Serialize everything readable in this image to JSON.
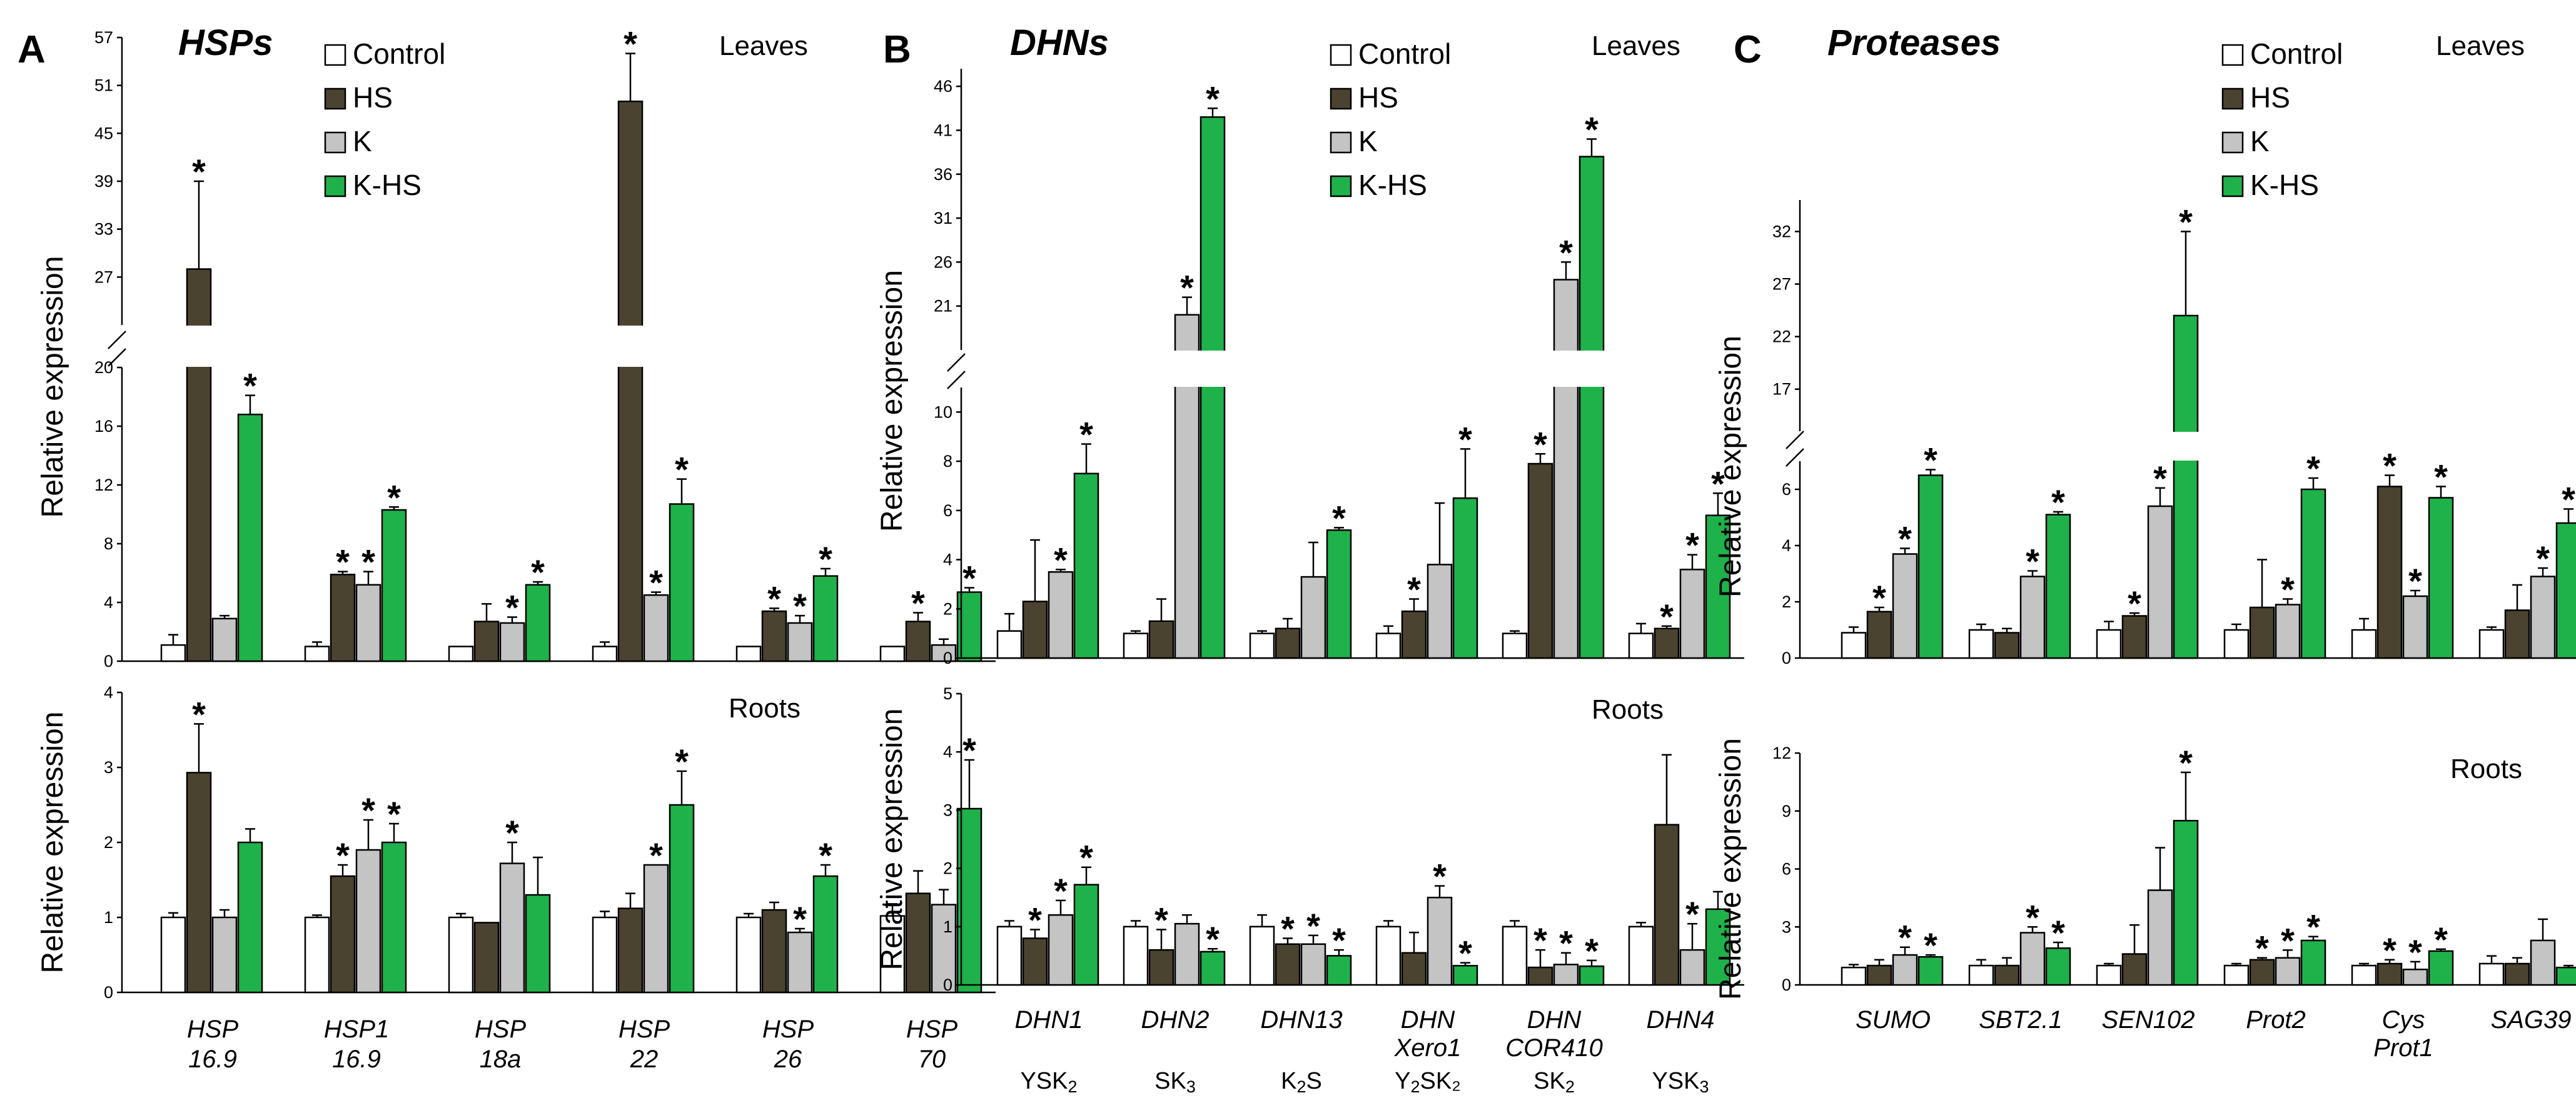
{
  "colors": {
    "Control": "#ffffff",
    "HS": "#4a4330",
    "K": "#c4c4c4",
    "K-HS": "#1fb24a"
  },
  "chart_data": [
    {
      "type": "bar",
      "panel": "A",
      "title": "HSPs",
      "legend": [
        "Control",
        "HS",
        "K",
        "K-HS"
      ],
      "categories": [
        [
          "HSP",
          "16.9"
        ],
        [
          "HSP1",
          "16.9"
        ],
        [
          "HSP",
          "18a"
        ],
        [
          "HSP",
          "22"
        ],
        [
          "HSP",
          "26"
        ],
        [
          "HSP",
          "70"
        ]
      ],
      "leaves": {
        "label": "Leaves",
        "ylabel": "Relative expression",
        "lower_ticks": [
          "0",
          "4",
          "8",
          "12",
          "16",
          "20"
        ],
        "upper_ticks": [
          "27",
          "33",
          "39",
          "45",
          "51",
          "57"
        ],
        "series": [
          {
            "name": "Control",
            "values": [
              1.1,
              1.0,
              1.0,
              1.0,
              1.0,
              1.0
            ],
            "err": [
              0.7,
              0.3,
              0,
              0.3,
              0,
              0
            ],
            "sig": [
              false,
              false,
              false,
              false,
              false,
              false
            ]
          },
          {
            "name": "HS",
            "values": [
              28,
              5.9,
              2.7,
              49,
              3.4,
              2.7
            ],
            "err": [
              11,
              0.2,
              1.2,
              6,
              0.2,
              0.6
            ],
            "sig": [
              true,
              true,
              false,
              true,
              true,
              true
            ]
          },
          {
            "name": "K",
            "values": [
              2.9,
              5.2,
              2.6,
              4.5,
              2.6,
              1.1
            ],
            "err": [
              0.2,
              0.9,
              0.4,
              0.2,
              0.5,
              0.4
            ],
            "sig": [
              false,
              true,
              true,
              true,
              true,
              false
            ]
          },
          {
            "name": "K-HS",
            "values": [
              16.8,
              10.3,
              5.2,
              10.7,
              5.8,
              4.7
            ],
            "err": [
              1.3,
              0.2,
              0.2,
              1.7,
              0.5,
              0.3
            ],
            "sig": [
              true,
              true,
              true,
              true,
              true,
              true
            ]
          }
        ]
      },
      "roots": {
        "label": "Roots",
        "ylabel": "Relative expression",
        "ticks": [
          "0",
          "1",
          "2",
          "3",
          "4"
        ],
        "series": [
          {
            "name": "Control",
            "values": [
              1.0,
              1.0,
              1.0,
              1.0,
              1.0,
              1.02
            ],
            "err": [
              0.06,
              0.03,
              0.05,
              0.08,
              0.05,
              0.16
            ],
            "sig": [
              false,
              false,
              false,
              false,
              false,
              false
            ]
          },
          {
            "name": "HS",
            "values": [
              2.93,
              1.55,
              0.93,
              1.12,
              1.1,
              1.32
            ],
            "err": [
              0.65,
              0.15,
              0,
              0.2,
              0.1,
              0.3
            ],
            "sig": [
              true,
              true,
              false,
              false,
              false,
              false
            ]
          },
          {
            "name": "K",
            "values": [
              1.0,
              1.9,
              1.72,
              1.7,
              0.8,
              1.17
            ],
            "err": [
              0.1,
              0.4,
              0.28,
              0,
              0.05,
              0.2
            ],
            "sig": [
              false,
              true,
              true,
              true,
              true,
              false
            ]
          },
          {
            "name": "K-HS",
            "values": [
              2.0,
              2.0,
              1.3,
              2.5,
              1.55,
              2.45
            ],
            "err": [
              0.18,
              0.25,
              0.5,
              0.45,
              0.15,
              0.65
            ],
            "sig": [
              false,
              true,
              false,
              true,
              true,
              true
            ]
          }
        ]
      }
    },
    {
      "type": "bar",
      "panel": "B",
      "title": "DHNs",
      "legend": [
        "Control",
        "HS",
        "K",
        "K-HS"
      ],
      "categories": [
        [
          "DHN1"
        ],
        [
          "DHN2"
        ],
        [
          "DHN13"
        ],
        [
          "DHN",
          "Xero1"
        ],
        [
          "DHN",
          "COR410"
        ],
        [
          "DHN4"
        ]
      ],
      "subtypes": [
        [
          "YSK",
          "2",
          ""
        ],
        [
          "SK",
          "3",
          ""
        ],
        [
          "K",
          "2",
          "S"
        ],
        [
          "Y",
          "2",
          "SK₂"
        ],
        [
          "SK",
          "2",
          ""
        ],
        [
          "YSK",
          "3",
          ""
        ]
      ],
      "leaves": {
        "label": "Leaves",
        "ylabel": "Relative expression",
        "lower_ticks": [
          "0",
          "2",
          "4",
          "6",
          "8",
          "10"
        ],
        "upper_ticks": [
          "21",
          "26",
          "31",
          "36",
          "41",
          "46"
        ],
        "series": [
          {
            "name": "Control",
            "values": [
              1.1,
              1.0,
              1.0,
              1.0,
              1.0,
              1.0
            ],
            "err": [
              0.7,
              0.1,
              0.1,
              0.3,
              0.1,
              0.4
            ],
            "sig": [
              false,
              false,
              false,
              false,
              false,
              false
            ]
          },
          {
            "name": "HS",
            "values": [
              2.3,
              1.5,
              1.2,
              1.9,
              7.9,
              1.2
            ],
            "err": [
              2.5,
              0.9,
              0.4,
              0.5,
              0.4,
              0.1
            ],
            "sig": [
              false,
              false,
              false,
              true,
              true,
              true
            ]
          },
          {
            "name": "K",
            "values": [
              3.5,
              20,
              3.3,
              3.8,
              24,
              3.6
            ],
            "err": [
              0.1,
              2,
              1.4,
              2.5,
              2,
              0.6
            ],
            "sig": [
              true,
              true,
              false,
              false,
              true,
              true
            ]
          },
          {
            "name": "K-HS",
            "values": [
              7.5,
              42.5,
              5.2,
              6.5,
              38,
              5.8
            ],
            "err": [
              1.2,
              1,
              0.1,
              2,
              2,
              0.9
            ],
            "sig": [
              true,
              true,
              true,
              true,
              true,
              true
            ]
          }
        ]
      },
      "roots": {
        "label": "Roots",
        "ylabel": "Relative expression",
        "ticks": [
          "0",
          "1",
          "2",
          "3",
          "4",
          "5"
        ],
        "series": [
          {
            "name": "Control",
            "values": [
              1.0,
              1.0,
              1.0,
              1.0,
              1.0,
              1.0
            ],
            "err": [
              0.1,
              0.1,
              0.2,
              0.1,
              0.1,
              0.07
            ],
            "sig": [
              false,
              false,
              false,
              false,
              false,
              false
            ]
          },
          {
            "name": "HS",
            "values": [
              0.8,
              0.6,
              0.7,
              0.55,
              0.3,
              2.75
            ],
            "err": [
              0.15,
              0.35,
              0.1,
              0.35,
              0.3,
              1.2
            ],
            "sig": [
              true,
              true,
              true,
              false,
              true,
              false
            ]
          },
          {
            "name": "K",
            "values": [
              1.2,
              1.05,
              0.7,
              1.5,
              0.35,
              0.6
            ],
            "err": [
              0.25,
              0.15,
              0.15,
              0.2,
              0.2,
              0.45
            ],
            "sig": [
              true,
              false,
              true,
              true,
              true,
              true
            ]
          },
          {
            "name": "K-HS",
            "values": [
              1.72,
              0.57,
              0.5,
              0.33,
              0.32,
              1.3
            ],
            "err": [
              0.3,
              0.05,
              0.1,
              0.05,
              0.1,
              0.3
            ],
            "sig": [
              true,
              true,
              true,
              true,
              true,
              false
            ]
          }
        ]
      }
    },
    {
      "type": "bar",
      "panel": "C",
      "title": "Proteases",
      "legend": [
        "Control",
        "HS",
        "K",
        "K-HS"
      ],
      "categories": [
        [
          "SUMO"
        ],
        [
          "SBT2.1"
        ],
        [
          "SEN102"
        ],
        [
          "Prot2"
        ],
        [
          "Cys",
          "Prot1"
        ],
        [
          "SAG39"
        ]
      ],
      "leaves": {
        "label": "Leaves",
        "ylabel": "Relative expression",
        "lower_ticks": [
          "0",
          "2",
          "4",
          "6"
        ],
        "upper_ticks": [
          "17",
          "22",
          "27",
          "32"
        ],
        "series": [
          {
            "name": "Control",
            "values": [
              0.9,
              1.0,
              1.0,
              1.0,
              1.0,
              1.0
            ],
            "err": [
              0.2,
              0.2,
              0.3,
              0.2,
              0.4,
              0.1
            ],
            "sig": [
              false,
              false,
              false,
              false,
              false,
              false
            ]
          },
          {
            "name": "HS",
            "values": [
              1.65,
              0.9,
              1.5,
              1.8,
              6.1,
              1.7
            ],
            "err": [
              0.15,
              0.15,
              0.1,
              1.7,
              0.4,
              0.9
            ],
            "sig": [
              true,
              false,
              true,
              false,
              true,
              false
            ]
          },
          {
            "name": "K",
            "values": [
              3.7,
              2.9,
              5.4,
              1.9,
              2.2,
              2.9
            ],
            "err": [
              0.2,
              0.2,
              2.2,
              0.2,
              0.2,
              0.3
            ],
            "sig": [
              true,
              true,
              true,
              true,
              true,
              true
            ]
          },
          {
            "name": "K-HS",
            "values": [
              6.5,
              5.1,
              24,
              6.0,
              5.7,
              4.8
            ],
            "err": [
              0.2,
              0.1,
              8,
              0.4,
              0.4,
              0.5
            ],
            "sig": [
              true,
              true,
              true,
              true,
              true,
              true
            ]
          }
        ]
      },
      "roots": {
        "label": "Roots",
        "ylabel": "Relative expression",
        "ticks": [
          "0",
          "3",
          "6",
          "9",
          "12"
        ],
        "series": [
          {
            "name": "Control",
            "values": [
              0.9,
              1.0,
              1.0,
              1.0,
              1.0,
              1.1
            ],
            "err": [
              0.15,
              0.3,
              0.1,
              0.1,
              0.1,
              0.4
            ],
            "sig": [
              false,
              false,
              false,
              false,
              false,
              false
            ]
          },
          {
            "name": "HS",
            "values": [
              1.0,
              1.0,
              1.6,
              1.3,
              1.1,
              1.1
            ],
            "err": [
              0.3,
              0.4,
              1.5,
              0.1,
              0.2,
              0.3
            ],
            "sig": [
              false,
              false,
              false,
              true,
              true,
              false
            ]
          },
          {
            "name": "K",
            "values": [
              1.55,
              2.7,
              4.9,
              1.4,
              0.8,
              2.3
            ],
            "err": [
              0.4,
              0.3,
              2.2,
              0.4,
              0.4,
              1.1
            ],
            "sig": [
              true,
              true,
              false,
              true,
              true,
              false
            ]
          },
          {
            "name": "K-HS",
            "values": [
              1.45,
              1.9,
              8.5,
              2.3,
              1.75,
              0.9
            ],
            "err": [
              0.1,
              0.3,
              2.5,
              0.2,
              0.1,
              0.1
            ],
            "sig": [
              true,
              true,
              true,
              true,
              true,
              false
            ]
          }
        ]
      }
    }
  ]
}
